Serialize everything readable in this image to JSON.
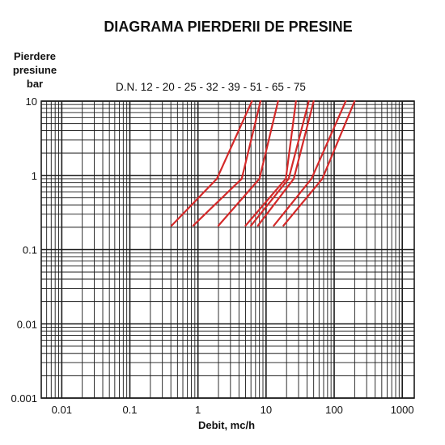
{
  "chart_data": {
    "type": "line",
    "title": "DIAGRAMA PIERDERII DE PRESINE",
    "ylabel_lines": [
      "Pierdere",
      "presiune",
      "bar"
    ],
    "xlabel": "Debit, mc/h",
    "subtitle": "D.N. 12 - 20 - 25 - 32 - 39 - 51 - 65 - 75",
    "x_scale": "log",
    "y_scale": "log",
    "xlim": [
      0.005,
      1500
    ],
    "ylim": [
      0.001,
      10
    ],
    "x_ticks": [
      {
        "value": 0.01,
        "label": "0.01"
      },
      {
        "value": 0.1,
        "label": "0.1"
      },
      {
        "value": 1,
        "label": "1"
      },
      {
        "value": 10,
        "label": "10"
      },
      {
        "value": 100,
        "label": "100"
      },
      {
        "value": 1000,
        "label": "1000"
      }
    ],
    "y_ticks": [
      {
        "value": 10,
        "label": "10"
      },
      {
        "value": 1,
        "label": "1"
      },
      {
        "value": 0.1,
        "label": "0.1"
      },
      {
        "value": 0.01,
        "label": "0.01"
      },
      {
        "value": 0.001,
        "label": "0.001"
      }
    ],
    "grid": true,
    "line_color": "#d42a2a",
    "series": [
      {
        "points": [
          [
            0.41,
            0.21
          ],
          [
            1.9,
            0.9
          ],
          [
            6.2,
            10
          ]
        ]
      },
      {
        "points": [
          [
            0.85,
            0.21
          ],
          [
            4.4,
            0.9
          ],
          [
            8.3,
            10
          ]
        ]
      },
      {
        "points": [
          [
            2.0,
            0.21
          ],
          [
            8.0,
            0.9
          ],
          [
            15.0,
            10
          ]
        ]
      },
      {
        "points": [
          [
            5.0,
            0.21
          ],
          [
            19.5,
            0.9
          ],
          [
            27.5,
            10
          ]
        ]
      },
      {
        "points": [
          [
            6.0,
            0.21
          ],
          [
            21.5,
            0.9
          ],
          [
            42.5,
            10
          ]
        ]
      },
      {
        "points": [
          [
            7.6,
            0.21
          ],
          [
            25.5,
            0.9
          ],
          [
            50.0,
            10
          ]
        ]
      },
      {
        "points": [
          [
            13.0,
            0.21
          ],
          [
            46.5,
            0.9
          ],
          [
            148.0,
            10
          ]
        ]
      },
      {
        "points": [
          [
            18.0,
            0.21
          ],
          [
            67.0,
            0.9
          ],
          [
            200.0,
            10
          ]
        ]
      }
    ]
  }
}
